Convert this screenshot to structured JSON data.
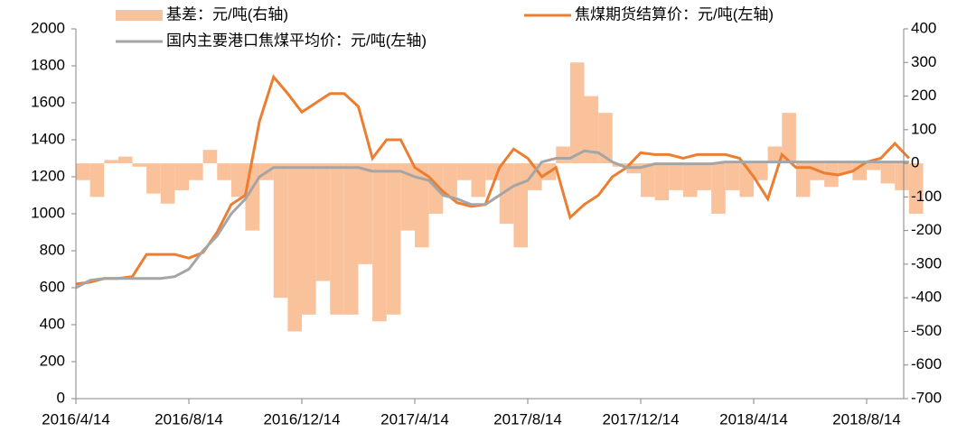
{
  "chart_data": {
    "type": "bar_line",
    "categories": [
      "2016/4/14",
      null,
      null,
      null,
      null,
      null,
      null,
      null,
      "2016/8/14",
      null,
      null,
      null,
      null,
      null,
      null,
      null,
      "2016/12/14",
      null,
      null,
      null,
      null,
      null,
      null,
      null,
      "2017/4/14",
      null,
      null,
      null,
      null,
      null,
      null,
      null,
      "2017/8/14",
      null,
      null,
      null,
      null,
      null,
      null,
      null,
      "2017/12/14",
      null,
      null,
      null,
      null,
      null,
      null,
      null,
      "2018/4/14",
      null,
      null,
      null,
      null,
      null,
      null,
      null,
      "2018/8/14",
      null,
      null,
      null
    ],
    "series": [
      {
        "name": "基差：元/吨(右轴)",
        "type": "bar",
        "axis": "y2",
        "color": "#f9c29b",
        "values": [
          -50,
          -100,
          10,
          20,
          -10,
          -90,
          -120,
          -80,
          -50,
          40,
          -50,
          -100,
          -200,
          -50,
          -400,
          -500,
          -450,
          -350,
          -450,
          -450,
          -300,
          -470,
          -450,
          -200,
          -250,
          -150,
          -100,
          -50,
          -100,
          -50,
          -180,
          -250,
          -80,
          -50,
          50,
          300,
          200,
          150,
          -10,
          -30,
          -100,
          -110,
          -80,
          -100,
          -80,
          -150,
          -80,
          -100,
          -50,
          50,
          150,
          -100,
          -50,
          -70,
          -30,
          -50,
          -20,
          -60,
          -80,
          -150
        ]
      },
      {
        "name": "焦煤期货结算价：元/吨(左轴)",
        "type": "line",
        "color": "#ed7d31",
        "values": [
          620,
          630,
          650,
          650,
          660,
          780,
          780,
          780,
          760,
          790,
          900,
          1050,
          1100,
          1500,
          1740,
          1650,
          1550,
          1600,
          1650,
          1650,
          1580,
          1300,
          1400,
          1400,
          1250,
          1200,
          1120,
          1060,
          1040,
          1050,
          1250,
          1350,
          1300,
          1200,
          1250,
          980,
          1050,
          1100,
          1200,
          1250,
          1330,
          1320,
          1320,
          1300,
          1320,
          1320,
          1320,
          1300,
          1200,
          1080,
          1320,
          1250,
          1250,
          1220,
          1210,
          1230,
          1280,
          1300,
          1380,
          1300
        ]
      },
      {
        "name": "国内主要港口焦煤平均价：元/吨(左轴)",
        "type": "line",
        "color": "#a5a5a5",
        "values": [
          600,
          640,
          650,
          650,
          650,
          650,
          650,
          660,
          700,
          800,
          880,
          1000,
          1080,
          1200,
          1250,
          1250,
          1250,
          1250,
          1250,
          1250,
          1250,
          1230,
          1230,
          1230,
          1200,
          1180,
          1100,
          1080,
          1050,
          1050,
          1100,
          1150,
          1180,
          1280,
          1300,
          1300,
          1340,
          1330,
          1280,
          1250,
          1250,
          1270,
          1270,
          1270,
          1270,
          1270,
          1280,
          1280,
          1280,
          1280,
          1280,
          1280,
          1280,
          1280,
          1280,
          1280,
          1280,
          1280,
          1280,
          1280
        ]
      }
    ],
    "ylim": [
      0,
      2000
    ],
    "yticks": [
      0,
      200,
      400,
      600,
      800,
      1000,
      1200,
      1400,
      1600,
      1800,
      2000
    ],
    "y2lim": [
      -700,
      400
    ],
    "y2ticks": [
      -700,
      -600,
      -500,
      -400,
      -300,
      -200,
      -100,
      0,
      100,
      200,
      300,
      400
    ]
  }
}
